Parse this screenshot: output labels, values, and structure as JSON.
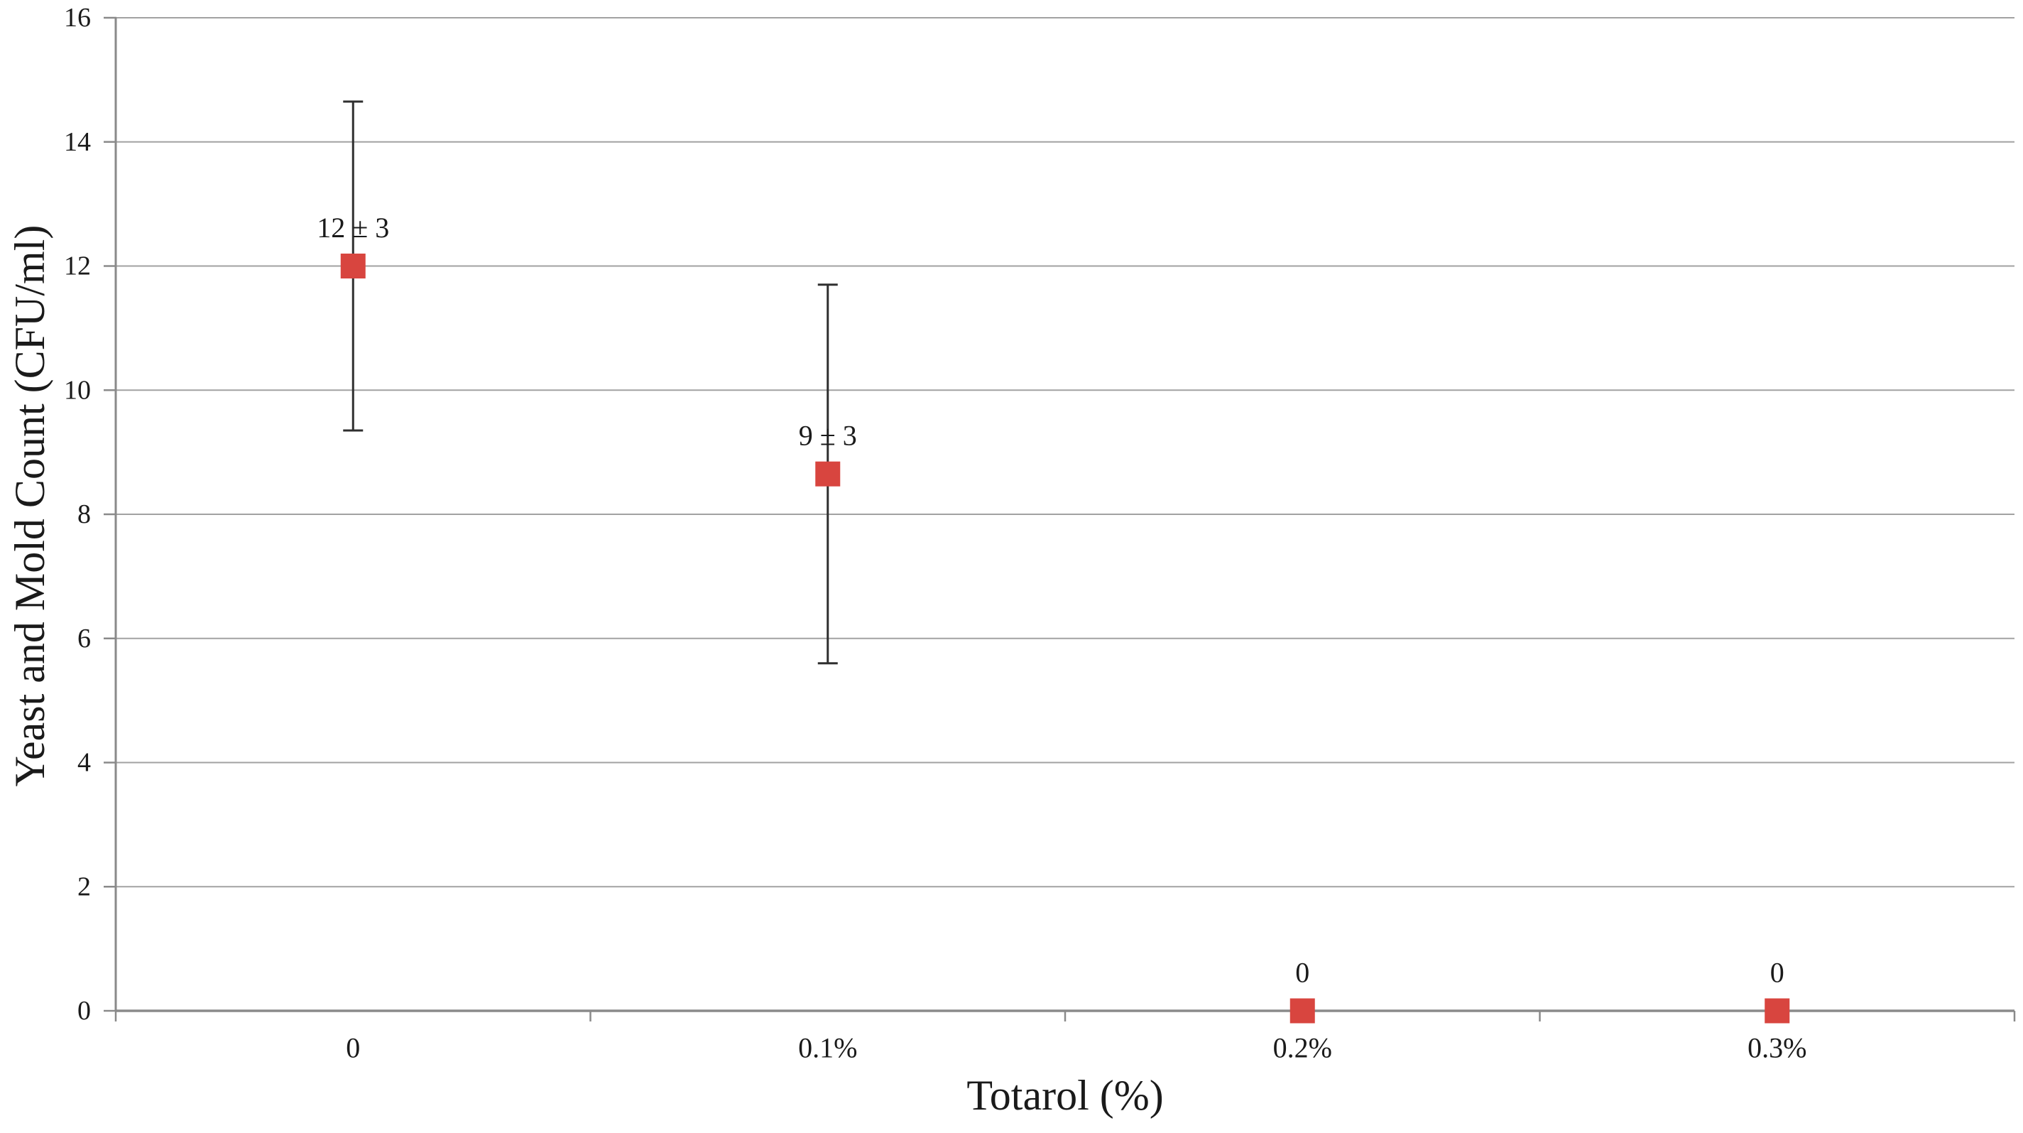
{
  "figure": {
    "background": "#ffffff"
  },
  "chart_data": {
    "type": "scatter",
    "title": "",
    "xlabel": "Totarol (%)",
    "ylabel": "Yeast and Mold Count (CFU/ml)",
    "categories": [
      "0",
      "0.1%",
      "0.2%",
      "0.3%"
    ],
    "series": [
      {
        "name": "Yeast and Mold Count (CFU/ml)",
        "marker": "square",
        "values": [
          12,
          8.65,
          0,
          0
        ],
        "errors": [
          2.65,
          3.05,
          0,
          0
        ],
        "point_labels": [
          "12 ± 3",
          "9 ± 3",
          "0",
          "0"
        ]
      }
    ],
    "ylim": [
      0,
      16
    ],
    "yticks": [
      0,
      2,
      4,
      6,
      8,
      10,
      12,
      14,
      16
    ],
    "xticklabels": [
      "0",
      "0.1%",
      "0.2%",
      "0.3%"
    ],
    "grid": "horizontal",
    "legend": "none",
    "colors": {
      "marker": "#d8453f",
      "grid": "#a2a2a2",
      "axis": "#8a8a8a",
      "error_bar": "#2f2f2f",
      "text": "#1a1a1a"
    }
  }
}
